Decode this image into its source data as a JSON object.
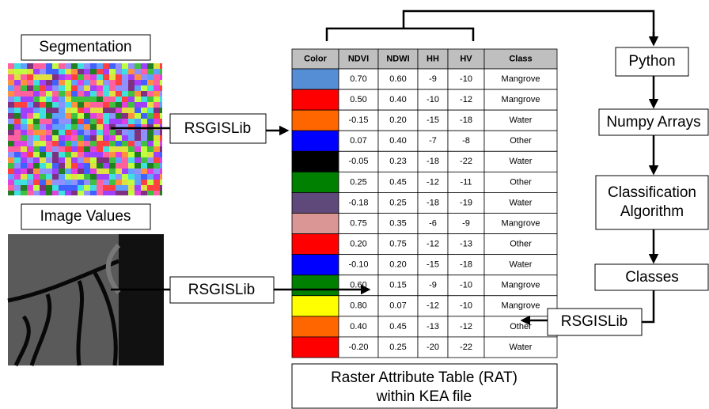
{
  "labels": {
    "segmentation": "Segmentation",
    "image_values": "Image Values",
    "rsgislib_1": "RSGISLib",
    "rsgislib_2": "RSGISLib",
    "rsgislib_3": "RSGISLib",
    "python": "Python",
    "numpy": "Numpy Arrays",
    "classification": [
      "Classification",
      "Algorithm"
    ],
    "classes": "Classes",
    "rat": [
      "Raster Attribute Table (RAT)",
      "within KEA file"
    ]
  },
  "table": {
    "columns": [
      "Color",
      "NDVI",
      "NDWI",
      "HH",
      "HV",
      "Class"
    ],
    "rows": [
      {
        "color": "#558ed5",
        "cells": [
          "0.70",
          "0.60",
          "-9",
          "-10",
          "Mangrove"
        ]
      },
      {
        "color": "#ff0000",
        "cells": [
          "0.50",
          "0.40",
          "-10",
          "-12",
          "Mangrove"
        ]
      },
      {
        "color": "#ff6600",
        "cells": [
          "-0.15",
          "0.20",
          "-15",
          "-18",
          "Water"
        ]
      },
      {
        "color": "#0000ff",
        "cells": [
          "0.07",
          "0.40",
          "-7",
          "-8",
          "Other"
        ]
      },
      {
        "color": "#000000",
        "cells": [
          "-0.05",
          "0.23",
          "-18",
          "-22",
          "Water"
        ]
      },
      {
        "color": "#008000",
        "cells": [
          "0.25",
          "0.45",
          "-12",
          "-11",
          "Other"
        ]
      },
      {
        "color": "#5f497a",
        "cells": [
          "-0.18",
          "0.25",
          "-18",
          "-19",
          "Water"
        ]
      },
      {
        "color": "#d99694",
        "cells": [
          "0.75",
          "0.35",
          "-6",
          "-9",
          "Mangrove"
        ]
      },
      {
        "color": "#ff0000",
        "cells": [
          "0.20",
          "0.75",
          "-12",
          "-13",
          "Other"
        ]
      },
      {
        "color": "#0000ff",
        "cells": [
          "-0.10",
          "0.20",
          "-15",
          "-18",
          "Water"
        ]
      },
      {
        "color": "#008000",
        "cells": [
          "0.60",
          "0.15",
          "-9",
          "-10",
          "Mangrove"
        ]
      },
      {
        "color": "#ffff00",
        "cells": [
          "0.80",
          "0.07",
          "-12",
          "-10",
          "Mangrove"
        ]
      },
      {
        "color": "#ff6600",
        "cells": [
          "0.40",
          "0.45",
          "-13",
          "-12",
          "Other"
        ]
      },
      {
        "color": "#ff0000",
        "cells": [
          "-0.20",
          "0.25",
          "-20",
          "-22",
          "Water"
        ]
      }
    ]
  }
}
